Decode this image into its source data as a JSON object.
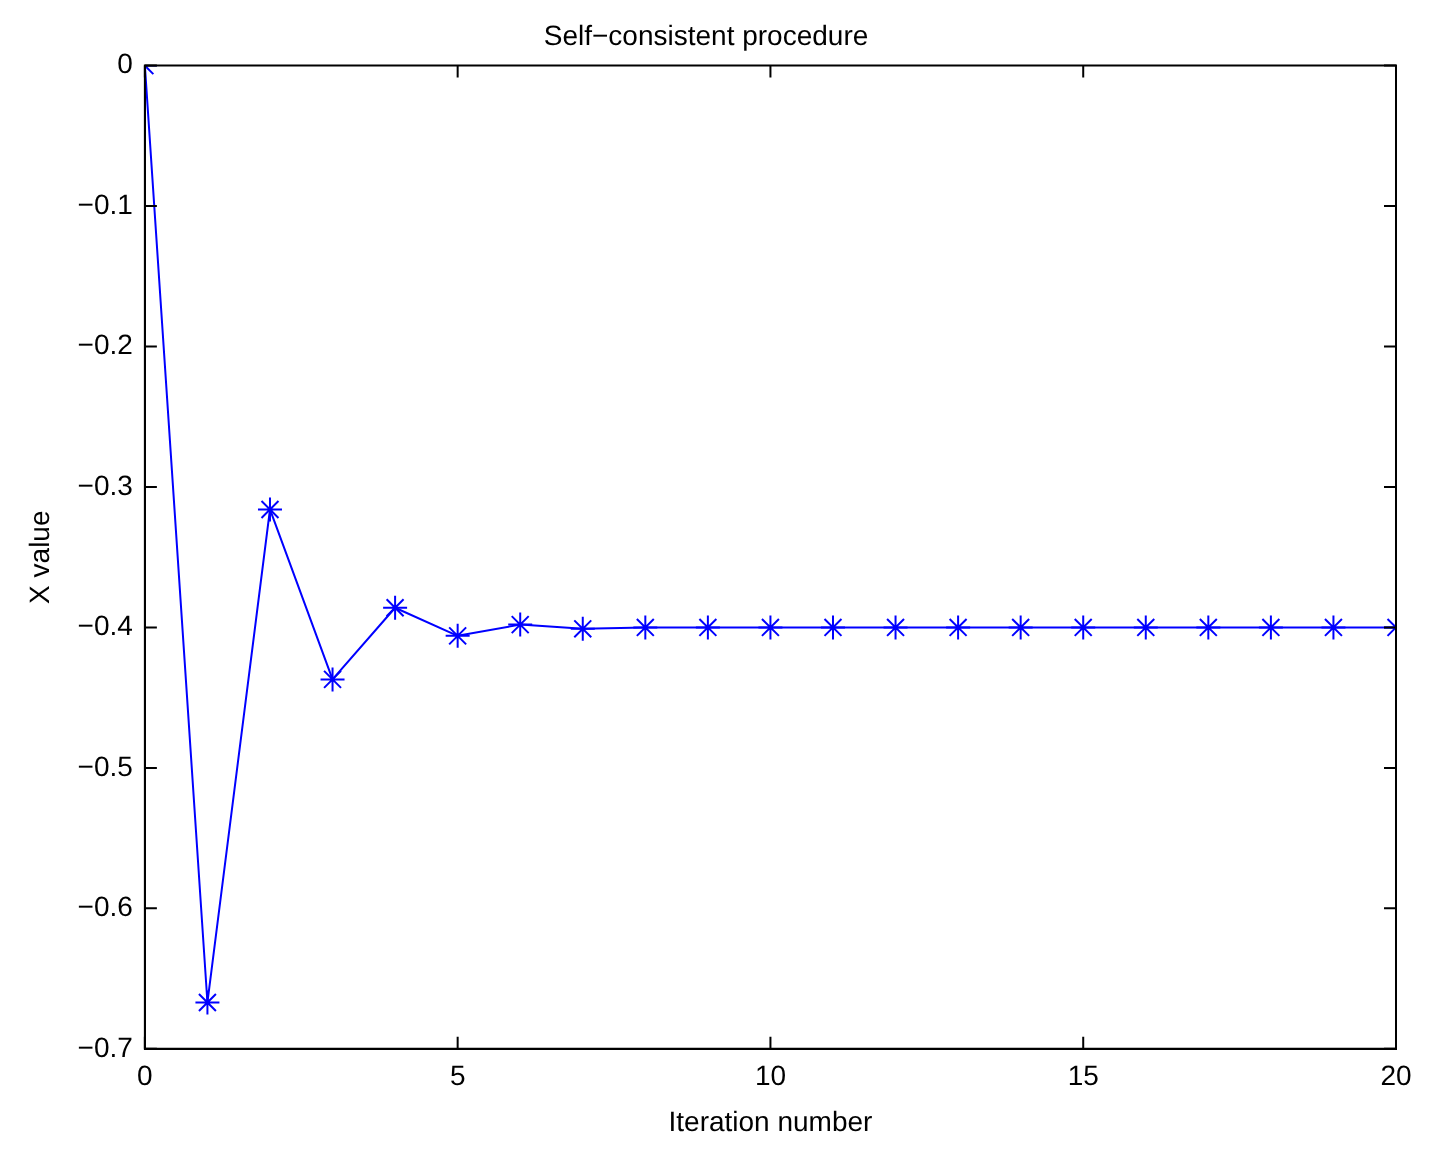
{
  "chart_data": {
    "type": "line",
    "title": "Self−consistent procedure",
    "xlabel": "Iteration number",
    "ylabel": "X value",
    "x": [
      0,
      1,
      2,
      3,
      4,
      5,
      6,
      7,
      8,
      9,
      10,
      11,
      12,
      13,
      14,
      15,
      16,
      17,
      18,
      19,
      20
    ],
    "series": [
      {
        "color": "#0000ff",
        "values": [
          0,
          -0.667,
          -0.316,
          -0.437,
          -0.386,
          -0.406,
          -0.398,
          -0.401,
          -0.4,
          -0.4,
          -0.4,
          -0.4,
          -0.4,
          -0.4,
          -0.4,
          -0.4,
          -0.4,
          -0.4,
          -0.4,
          -0.4,
          -0.4
        ]
      }
    ],
    "xlim": [
      0,
      20
    ],
    "xticks": [
      0,
      5,
      10,
      15,
      20
    ],
    "ylim": [
      -0.7,
      0
    ],
    "yticks": [
      {
        "value": -0.7,
        "label": "−0.7"
      },
      {
        "value": -0.6,
        "label": "−0.6"
      },
      {
        "value": -0.5,
        "label": "−0.5"
      },
      {
        "value": -0.4,
        "label": "−0.4"
      },
      {
        "value": -0.3,
        "label": "−0.3"
      },
      {
        "value": -0.2,
        "label": "−0.2"
      },
      {
        "value": -0.1,
        "label": "−0.1"
      },
      0
    ],
    "grid": false,
    "legend": false,
    "marker": "cross",
    "line_style": "solid"
  }
}
